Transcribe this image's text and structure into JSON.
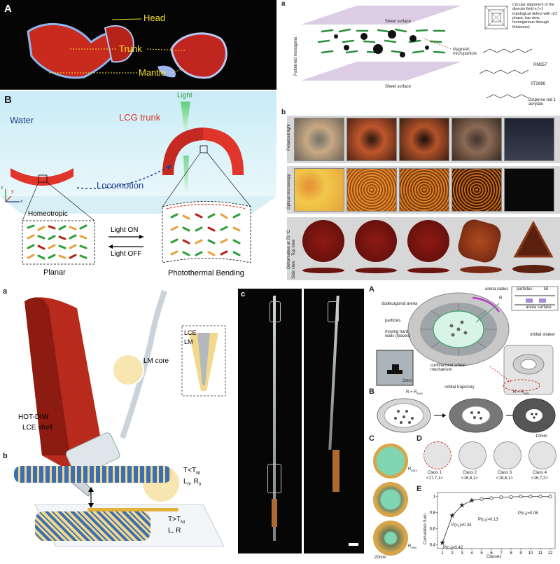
{
  "q1": {
    "panel_a": "A",
    "panel_b": "B",
    "head": "Head",
    "trunk": "Trunk",
    "mantle": "Mantle",
    "water": "Water",
    "light": "Light",
    "lcg_trunk": "LCG trunk",
    "locomotion": "Locomotion",
    "homeotropic": "Homeotropic",
    "planar": "Planar",
    "light_on": "Light ON",
    "light_off": "Light OFF",
    "photothermal": "Photothermal Bending",
    "axis_z": "z",
    "axis_y": "y",
    "axis_x": "x"
  },
  "q2": {
    "panel_a": "a",
    "panel_b": "b",
    "sheet_surface_top": "Sheet surface",
    "sheet_surface_bottom": "Sheet surface",
    "patterned_mesogens": "Patterned mesogens",
    "magnetic": "Magnetic microparticle",
    "director_note": "Circular alignment of the director field n (+1 topological defect with π/2 phase, top view, homogenous through thickness)",
    "rm257": "RM257",
    "st3866": "ST3866",
    "disperse": "Disperse red 1 acrylate",
    "row1": "Polarized light",
    "row2": "Optical microscopy",
    "row3a": "Top view",
    "row3b": "Deformation at 70 °C",
    "row4": "Side view"
  },
  "q3": {
    "panel_a": "a",
    "panel_b": "b",
    "panel_c": "c",
    "lce": "LCE",
    "lm": "LM",
    "hot_diw": "HOT-DIW",
    "lm_core": "LM core",
    "lce_shell": "LCE shell",
    "cond1": "T<T",
    "cond1_sub": "NI",
    "cond1_b": "L",
    "cond1_b_sub": "0",
    "cond1_c": ", R",
    "cond1_c_sub": "0",
    "cond2": "T>T",
    "cond2_sub": "NI",
    "cond2_b": "L, R"
  },
  "q4": {
    "panel_a": "A",
    "panel_b": "B",
    "panel_c": "C",
    "panel_d": "D",
    "panel_e": "E",
    "dodecagonal": "dodecagonal arena",
    "arena_radius": "arena radius",
    "r": "R",
    "particles": "particles",
    "moving_walls": "moving hard walls (leaves)",
    "confinement": "confinement wheel mechanism",
    "orbital_traj": "orbital trajectory",
    "orbital_shaker": "orbital shaker",
    "inset_particles": "particles",
    "inset_lid": "lid",
    "inset_arena": "arena surface",
    "scale_2mm": "2mm",
    "scale_10mm": "10mm",
    "scale_20mm": "20mm",
    "r_max_eq": "R = R",
    "r_max_sub": "MAX",
    "r_min_eq": "R = R",
    "r_min_sub": "MIN",
    "rmax_label": "R",
    "rmax_sub": "MAX",
    "rmin_label": "R",
    "rmin_sub": "MIN",
    "classes": [
      {
        "name": "Class 1",
        "vec": "<17,7,1>"
      },
      {
        "name": "Class 2",
        "vec": "<16,8,1>"
      },
      {
        "name": "Class 3",
        "vec": "<18,6,1>"
      },
      {
        "name": "Class 4",
        "vec": "<16,7,2>"
      }
    ],
    "ylabel": "Cumulative Sum",
    "xlabel": "Classes",
    "ann": [
      "P(c₁)=0.42",
      "P(c₂)=0.34",
      "P(c₃)=0.13",
      "P(c₄)=0.06"
    ]
  },
  "chart_data": {
    "type": "line",
    "x": [
      1,
      2,
      3,
      4,
      5,
      6,
      7,
      8,
      9,
      10,
      11,
      12
    ],
    "values": [
      0.42,
      0.76,
      0.89,
      0.95,
      0.97,
      0.98,
      0.99,
      0.995,
      1.0,
      1.0,
      1.0,
      1.0
    ],
    "xlabel": "Classes",
    "ylabel": "Cumulative Sum",
    "xticks": [
      "1",
      "2",
      "3",
      "4",
      "5",
      "6",
      "7",
      "8",
      "9",
      "10",
      "11",
      "12"
    ],
    "yticks": [
      "0.4",
      "0.6",
      "0.8",
      "1"
    ],
    "ylim": [
      0.35,
      1.05
    ],
    "xlim": [
      0.5,
      12.5
    ]
  },
  "colors": {
    "red": "#d8342c",
    "water": "#d6f0f8",
    "green": "#2e9e3a",
    "orange": "#e8a03c",
    "lce_blue": "#3a6fb5",
    "lce_yellow": "#f3d88c",
    "arena_green": "#7fd6b0"
  }
}
